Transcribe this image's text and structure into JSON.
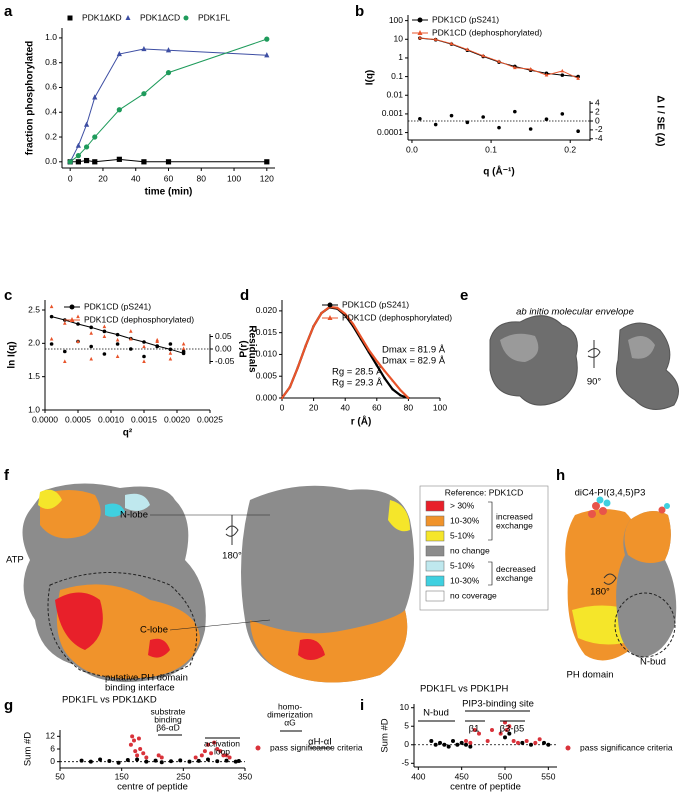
{
  "chart_data": [
    {
      "type": "line",
      "panel": "a",
      "xlabel": "time (min)",
      "ylabel": "fraction phosphorylated",
      "x": [
        0,
        5,
        10,
        15,
        30,
        45,
        60,
        120
      ],
      "xlim": [
        -5,
        125
      ],
      "xticks": [
        0,
        20,
        40,
        60,
        80,
        100,
        120
      ],
      "ylim": [
        -0.05,
        1.08
      ],
      "yticks": [
        {
          "value": 0,
          "label": "0.0"
        },
        0.2,
        0.4,
        0.6,
        0.8,
        {
          "value": 1,
          "label": "1.0"
        }
      ],
      "series": [
        {
          "name": "PDK1ΔKD",
          "color": "#000000",
          "marker": "square",
          "connected": true,
          "values": [
            0,
            0,
            0.01,
            0,
            0.02,
            0,
            0,
            0
          ]
        },
        {
          "name": "PDK1ΔCD",
          "color": "#3d4ea3",
          "marker": "triangle",
          "connected": true,
          "values": [
            0,
            0.13,
            0.3,
            0.52,
            0.87,
            0.91,
            0.9,
            0.86
          ]
        },
        {
          "name": "PDK1FL",
          "color": "#1e9b5b",
          "marker": "circle",
          "connected": true,
          "values": [
            0,
            0.05,
            0.12,
            0.2,
            0.42,
            0.55,
            0.72,
            0.99
          ]
        }
      ]
    },
    {
      "type": "line",
      "panel": "b",
      "xlabel": "q (Å⁻¹)",
      "ylabel": "I(q)",
      "y2label": "Δ I / SE (Δ)",
      "yscale": "log",
      "x": [
        0.01,
        0.03,
        0.05,
        0.07,
        0.09,
        0.11,
        0.13,
        0.15,
        0.17,
        0.19,
        0.21
      ],
      "xlim": [
        -0.005,
        0.225
      ],
      "xticks": [
        {
          "value": 0,
          "label": "0.0"
        },
        0.1,
        0.2
      ],
      "ylim": [
        4e-05,
        200
      ],
      "yticks": [
        0.0001,
        0.001,
        0.01,
        0.1,
        1,
        10,
        100
      ],
      "y2lim": [
        -4.5,
        4.5
      ],
      "y2ticks": [
        -4,
        -2,
        0,
        2,
        4
      ],
      "y2_reference_line": 0,
      "series": [
        {
          "name": "PDK1CD (pS241)",
          "color": "#000000",
          "marker": "circle",
          "connected": true,
          "values": [
            11.5,
            9.5,
            5.5,
            2.6,
            1.2,
            0.6,
            0.35,
            0.22,
            0.15,
            0.12,
            0.1
          ]
        },
        {
          "name": "PDK1CD (dephosphorylated)",
          "color": "#e8542b",
          "marker": "triangle",
          "connected": true,
          "values": [
            11.8,
            9.8,
            5.8,
            2.8,
            1.3,
            0.65,
            0.3,
            0.25,
            0.12,
            0.2,
            0.08
          ]
        },
        {
          "color": "#000000",
          "marker": "circle",
          "connected": false,
          "axis": "y2",
          "values": [
            0.5,
            -0.8,
            1.2,
            -0.3,
            0.9,
            -1.5,
            2.1,
            -1.8,
            0.4,
            1.6,
            -2.3
          ]
        }
      ]
    },
    {
      "type": "line",
      "panel": "c",
      "xlabel": "q²",
      "ylabel": "ln I(q)",
      "y2label": "Residuals",
      "x": [
        0.0001,
        0.0003,
        0.0005,
        0.0007,
        0.0009,
        0.0011,
        0.0013,
        0.0015,
        0.0017,
        0.0019,
        0.0021
      ],
      "xlim": [
        0,
        0.0025
      ],
      "xticks": [
        {
          "value": 0,
          "label": "0.0000"
        },
        {
          "value": 0.0005,
          "label": "0.0005"
        },
        {
          "value": 0.001,
          "label": "0.0010"
        },
        {
          "value": 0.0015,
          "label": "0.0015"
        },
        {
          "value": 0.002,
          "label": "0.0020"
        },
        {
          "value": 0.0025,
          "label": "0.0025"
        }
      ],
      "ylim": [
        1.0,
        2.65
      ],
      "yticks": [
        {
          "value": 1,
          "label": "1.0"
        },
        1.5,
        {
          "value": 2,
          "label": "2.0"
        },
        2.5
      ],
      "y2lim": [
        -0.06,
        0.06
      ],
      "y2ticks": [
        -0.05,
        {
          "value": 0,
          "label": "0.00"
        },
        0.05
      ],
      "y2_reference_line": 0,
      "series": [
        {
          "name": "PDK1CD (pS241)",
          "color": "#000000",
          "marker": "circle",
          "connected": true,
          "values": [
            2.4,
            2.35,
            2.29,
            2.24,
            2.18,
            2.13,
            2.07,
            2.02,
            1.96,
            1.91,
            1.85
          ]
        },
        {
          "name": "PDK1CD (dephosphorylated)",
          "color": "#e8542b",
          "marker": "triangle",
          "connected": false,
          "values": [
            2.55,
            2.3,
            2.4,
            2.15,
            2.25,
            2.05,
            2.18,
            1.95,
            2.05,
            1.85,
            1.92
          ]
        },
        {
          "color": "#000000",
          "marker": "circle",
          "connected": false,
          "axis": "y2",
          "values": [
            0.02,
            -0.01,
            0.03,
            0.01,
            -0.02,
            0.02,
            0.0,
            -0.03,
            0.01,
            0.02,
            -0.01
          ]
        },
        {
          "color": "#e8542b",
          "marker": "triangle",
          "connected": false,
          "axis": "y2",
          "values": [
            0.04,
            -0.05,
            0.03,
            -0.04,
            0.05,
            -0.03,
            0.04,
            -0.05,
            0.03,
            -0.04,
            0.02
          ]
        }
      ]
    },
    {
      "type": "line",
      "panel": "d",
      "xlabel": "r (Å)",
      "ylabel": "P(r)",
      "x": [
        0,
        5,
        10,
        15,
        20,
        25,
        30,
        35,
        40,
        45,
        50,
        55,
        60,
        65,
        70,
        75,
        80
      ],
      "xlim": [
        0,
        100
      ],
      "xticks": [
        0,
        20,
        40,
        60,
        80,
        100
      ],
      "ylim": [
        0,
        0.0225
      ],
      "yticks": [
        {
          "value": 0,
          "label": "0.000"
        },
        {
          "value": 0.005,
          "label": "0.005"
        },
        {
          "value": 0.01,
          "label": "0.010"
        },
        {
          "value": 0.015,
          "label": "0.015"
        },
        {
          "value": 0.02,
          "label": "0.020"
        }
      ],
      "series": [
        {
          "name": "PDK1CD (pS241)",
          "color": "#000000",
          "marker": "circle",
          "connected": true,
          "values": [
            0,
            0.0025,
            0.007,
            0.012,
            0.0165,
            0.0195,
            0.0208,
            0.0205,
            0.019,
            0.0165,
            0.0135,
            0.0105,
            0.0075,
            0.0045,
            0.002,
            0.0006,
            0
          ]
        },
        {
          "name": "PDK1CD (dephosphorylated)",
          "color": "#e8542b",
          "marker": "triangle",
          "connected": true,
          "values": [
            0,
            0.0025,
            0.007,
            0.012,
            0.0165,
            0.0195,
            0.0209,
            0.0207,
            0.0193,
            0.017,
            0.014,
            0.011,
            0.0085,
            0.0062,
            0.004,
            0.0018,
            0
          ]
        }
      ],
      "annotations": [
        {
          "text": "Dmax = 81.9 Å",
          "color": "#000000"
        },
        {
          "text": "Dmax = 82.9 Å",
          "color": "#e8202a"
        },
        {
          "text": "Rg = 28.5 Å",
          "color": "#000000"
        },
        {
          "text": "Rg = 29.3 Å",
          "color": "#e8202a"
        }
      ]
    },
    {
      "type": "scatter",
      "panel": "g",
      "title": "PDK1FL vs PDK1ΔKD",
      "xlabel": "centre of peptide",
      "ylabel": "Sum #D",
      "xlim": [
        50,
        350
      ],
      "xticks": [
        50,
        150,
        250,
        350
      ],
      "ylim": [
        -3,
        15
      ],
      "yticks": [
        0,
        6,
        12
      ],
      "reference_line": 0,
      "series": [
        {
          "color": "#000000",
          "marker": "circle",
          "x": [
            85,
            100,
            115,
            130,
            145,
            160,
            175,
            190,
            205,
            215,
            230,
            245,
            260,
            275,
            290,
            305,
            320,
            335,
            340
          ],
          "values": [
            0.5,
            0,
            1,
            0.3,
            -0.5,
            0.8,
            1,
            0,
            0.5,
            -0.3,
            0.2,
            0.6,
            0,
            0.4,
            1,
            0.2,
            0.5,
            0,
            0.3
          ]
        },
        {
          "name": "pass significance criteria",
          "color": "#d9323a",
          "marker": "circle",
          "x": [
            165,
            167,
            170,
            172,
            175,
            178,
            180,
            185,
            190,
            210,
            215,
            270,
            280,
            285,
            290,
            295,
            300,
            305,
            310,
            315,
            320,
            325
          ],
          "values": [
            8,
            12,
            10,
            5,
            3,
            11,
            6,
            4,
            2,
            3,
            2,
            2,
            3,
            5,
            8,
            4,
            9,
            6,
            5,
            3,
            3,
            2
          ]
        }
      ],
      "annotations": [
        {
          "text": [
            "substrate",
            "binding",
            "β6-αD"
          ]
        },
        {
          "text": [
            "activation",
            "loop"
          ]
        },
        {
          "text": [
            "homo-",
            "dimerization",
            "αG"
          ]
        },
        {
          "text": "αH-αI"
        }
      ]
    },
    {
      "type": "scatter",
      "panel": "i",
      "title": "PDK1FL vs PDK1PH",
      "xlabel": "centre of peptide",
      "ylabel": "Sum #D",
      "xlim": [
        395,
        560
      ],
      "xticks": [
        400,
        450,
        500,
        550
      ],
      "ylim": [
        -6,
        11
      ],
      "yticks": [
        -5,
        0,
        5,
        10
      ],
      "reference_line": 0,
      "series": [
        {
          "color": "#000000",
          "marker": "circle",
          "x": [
            415,
            420,
            425,
            430,
            435,
            440,
            445,
            450,
            455,
            460,
            500,
            505,
            520,
            530,
            545,
            550
          ],
          "values": [
            1,
            0,
            0.5,
            0,
            -0.5,
            1,
            0,
            0.5,
            0,
            -0.5,
            2,
            3,
            0.5,
            0,
            0.5,
            0
          ]
        },
        {
          "name": "pass significance criteria",
          "color": "#d9323a",
          "marker": "circle",
          "x": [
            455,
            460,
            465,
            470,
            480,
            485,
            495,
            500,
            502,
            505,
            510,
            515,
            525,
            535,
            540
          ],
          "values": [
            1,
            0.5,
            4,
            3,
            1,
            4,
            3,
            6,
            4,
            5,
            1,
            0.5,
            1,
            0.5,
            1.5
          ]
        }
      ],
      "annotations": [
        {
          "text": "PIP3-binding site"
        },
        {
          "text": "N-bud"
        },
        {
          "text": "β1"
        },
        {
          "text": "β3-β5"
        }
      ]
    }
  ],
  "figures": [
    {
      "panel": "e",
      "title": "ab initio molecular envelope",
      "rotation": "90°"
    },
    {
      "panel": "f",
      "labels": [
        "N-lobe",
        "ATP",
        "C-lobe"
      ],
      "interface": [
        "putative PH domain",
        "binding interface"
      ],
      "rotation": "180°",
      "legend": {
        "title": "Reference: PDK1CD",
        "items": [
          "> 30%",
          "10-30%",
          "5-10%",
          "no change",
          "5-10%",
          "10-30%",
          "no coverage"
        ],
        "colors": [
          "#e8202a",
          "#f0932b",
          "#f5e62a",
          "#8c8c8c",
          "#bfe8ee",
          "#3fd0e0",
          "#ffffff"
        ],
        "groups": [
          [
            "increased",
            "exchange"
          ],
          [
            "decreased",
            "exchange"
          ]
        ]
      }
    },
    {
      "panel": "h",
      "labels": [
        "diC4-PI(3,4,5)P3",
        "PH domain",
        "N-bud"
      ],
      "rotation": "180°"
    }
  ]
}
